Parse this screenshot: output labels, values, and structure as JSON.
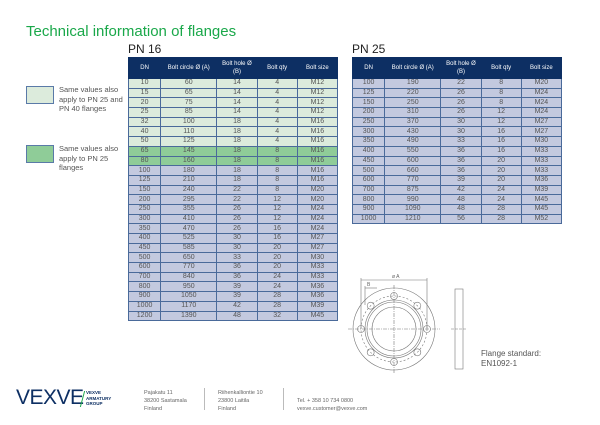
{
  "title": "Technical information of flanges",
  "legend": [
    {
      "text": "Same values also apply to PN 25 and PN 40 flanges",
      "color": "#dcebdc"
    },
    {
      "text": "Same values also apply to PN 25 flanges",
      "color": "#8fcc98"
    }
  ],
  "columns": [
    "DN",
    "Bolt circle Ø (A)",
    "Bolt hole Ø (B)",
    "Bolt qty",
    "Bolt size"
  ],
  "pn16": {
    "label": "PN 16",
    "rows": [
      [
        "10",
        "60",
        "14",
        "4",
        "M12",
        "lg"
      ],
      [
        "15",
        "65",
        "14",
        "4",
        "M12",
        "lg"
      ],
      [
        "20",
        "75",
        "14",
        "4",
        "M12",
        "lg"
      ],
      [
        "25",
        "85",
        "14",
        "4",
        "M12",
        "lg"
      ],
      [
        "32",
        "100",
        "18",
        "4",
        "M16",
        "lg"
      ],
      [
        "40",
        "110",
        "18",
        "4",
        "M16",
        "lg"
      ],
      [
        "50",
        "125",
        "18",
        "4",
        "M16",
        "lg"
      ],
      [
        "65",
        "145",
        "18",
        "8",
        "M16",
        "dg"
      ],
      [
        "80",
        "160",
        "18",
        "8",
        "M16",
        "dg"
      ],
      [
        "100",
        "180",
        "18",
        "8",
        "M16",
        "bl"
      ],
      [
        "125",
        "210",
        "18",
        "8",
        "M16",
        "bl"
      ],
      [
        "150",
        "240",
        "22",
        "8",
        "M20",
        "bl"
      ],
      [
        "200",
        "295",
        "22",
        "12",
        "M20",
        "bl"
      ],
      [
        "250",
        "355",
        "26",
        "12",
        "M24",
        "bl"
      ],
      [
        "300",
        "410",
        "26",
        "12",
        "M24",
        "bl"
      ],
      [
        "350",
        "470",
        "26",
        "16",
        "M24",
        "bl"
      ],
      [
        "400",
        "525",
        "30",
        "16",
        "M27",
        "bl"
      ],
      [
        "450",
        "585",
        "30",
        "20",
        "M27",
        "bl"
      ],
      [
        "500",
        "650",
        "33",
        "20",
        "M30",
        "bl"
      ],
      [
        "600",
        "770",
        "36",
        "20",
        "M33",
        "bl"
      ],
      [
        "700",
        "840",
        "36",
        "24",
        "M33",
        "bl"
      ],
      [
        "800",
        "950",
        "39",
        "24",
        "M36",
        "bl"
      ],
      [
        "900",
        "1050",
        "39",
        "28",
        "M36",
        "bl"
      ],
      [
        "1000",
        "1170",
        "42",
        "28",
        "M39",
        "bl"
      ],
      [
        "1200",
        "1390",
        "48",
        "32",
        "M45",
        "bl"
      ]
    ]
  },
  "pn25": {
    "label": "PN 25",
    "rows": [
      [
        "100",
        "190",
        "22",
        "8",
        "M20",
        "bl"
      ],
      [
        "125",
        "220",
        "26",
        "8",
        "M24",
        "bl"
      ],
      [
        "150",
        "250",
        "26",
        "8",
        "M24",
        "bl"
      ],
      [
        "200",
        "310",
        "26",
        "12",
        "M24",
        "bl"
      ],
      [
        "250",
        "370",
        "30",
        "12",
        "M27",
        "bl"
      ],
      [
        "300",
        "430",
        "30",
        "16",
        "M27",
        "bl"
      ],
      [
        "350",
        "490",
        "33",
        "16",
        "M30",
        "bl"
      ],
      [
        "400",
        "550",
        "36",
        "16",
        "M33",
        "bl"
      ],
      [
        "450",
        "600",
        "36",
        "20",
        "M33",
        "bl"
      ],
      [
        "500",
        "660",
        "36",
        "20",
        "M33",
        "bl"
      ],
      [
        "600",
        "770",
        "39",
        "20",
        "M36",
        "bl"
      ],
      [
        "700",
        "875",
        "42",
        "24",
        "M39",
        "bl"
      ],
      [
        "800",
        "990",
        "48",
        "24",
        "M45",
        "bl"
      ],
      [
        "900",
        "1090",
        "48",
        "28",
        "M45",
        "bl"
      ],
      [
        "1000",
        "1210",
        "56",
        "28",
        "M52",
        "bl"
      ]
    ]
  },
  "diagram": {
    "label_a": "ø A",
    "label_b": "B"
  },
  "standard": {
    "line1": "Flange standard:",
    "line2": "EN1092-1"
  },
  "footer": {
    "logo": "VEXVE",
    "group": [
      "VEXVE",
      "ARMATURY",
      "GROUP"
    ],
    "addr1": [
      "Pajakatu 11",
      "38200 Sastamala",
      "Finland"
    ],
    "addr2": [
      "Riihenkalliontie 10",
      "23800 Laitila",
      "Finland"
    ],
    "contact": [
      "Tel. + 358 10 734 0800",
      "vexve.customer@vexve.com"
    ]
  }
}
